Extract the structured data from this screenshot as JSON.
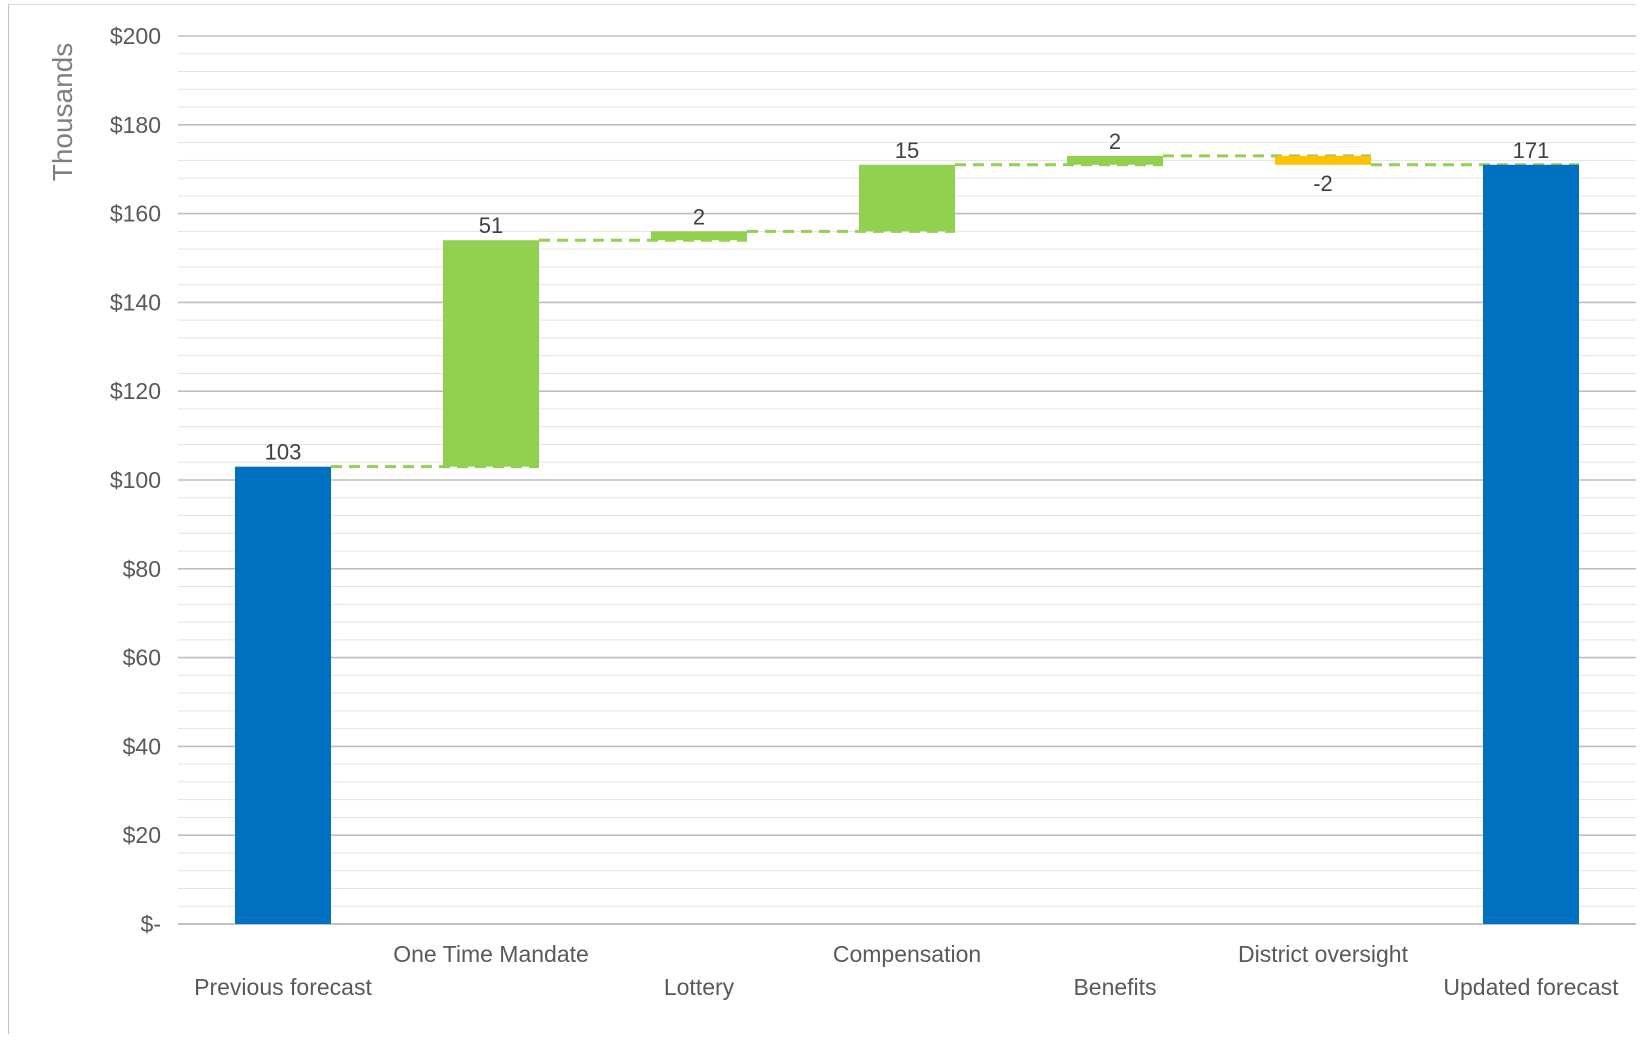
{
  "chart_data": {
    "type": "bar",
    "subtype": "waterfall",
    "ylabel": "Thousands",
    "ylim": [
      0,
      200
    ],
    "y_tick_labels": [
      "$-",
      "$20",
      "$40",
      "$60",
      "$80",
      "$100",
      "$120",
      "$140",
      "$160",
      "$180",
      "$200"
    ],
    "grid": true,
    "legend": "none",
    "categories": [
      "Previous forecast",
      "One Time Mandate",
      "Lottery",
      "Compensation",
      "Benefits",
      "District oversight",
      "Updated forecast"
    ],
    "values": [
      103,
      51,
      2,
      15,
      2,
      -2,
      171
    ],
    "data_labels": [
      "103",
      "51",
      "2",
      "15",
      "2",
      "-2",
      "171"
    ],
    "kinds": [
      "total",
      "increase",
      "increase",
      "increase",
      "increase",
      "decrease",
      "total"
    ],
    "colors": {
      "total": "#0070C0",
      "increase": "#92D050",
      "decrease": "#FFC000",
      "connector": "#92D050",
      "grid_major": "#bfbfbf",
      "grid_minor": "#e3e3e3"
    }
  }
}
